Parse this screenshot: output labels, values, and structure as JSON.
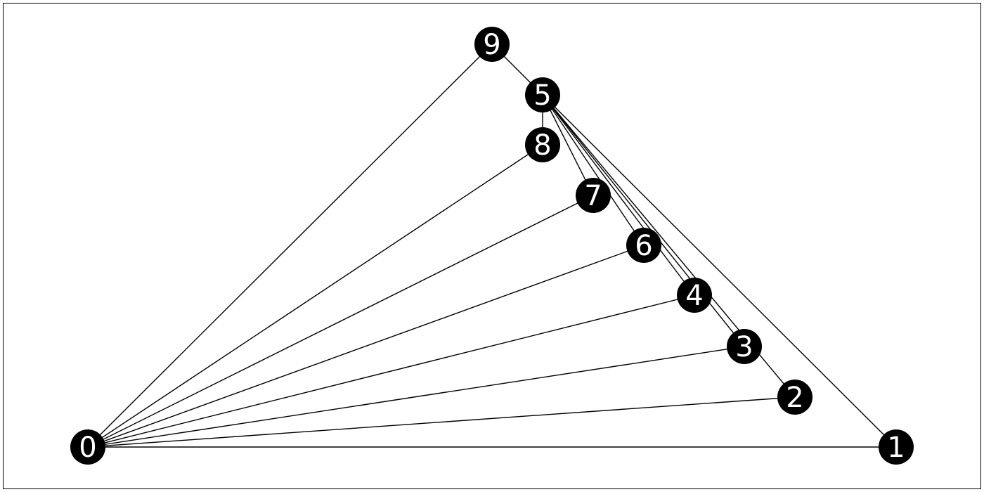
{
  "graph": {
    "nodes": [
      {
        "id": 0,
        "label": "0"
      },
      {
        "id": 1,
        "label": "1"
      },
      {
        "id": 2,
        "label": "2"
      },
      {
        "id": 3,
        "label": "3"
      },
      {
        "id": 4,
        "label": "4"
      },
      {
        "id": 5,
        "label": "5"
      },
      {
        "id": 6,
        "label": "6"
      },
      {
        "id": 7,
        "label": "7"
      },
      {
        "id": 8,
        "label": "8"
      },
      {
        "id": 9,
        "label": "9"
      }
    ],
    "edges": [
      [
        0,
        1
      ],
      [
        0,
        2
      ],
      [
        0,
        3
      ],
      [
        0,
        4
      ],
      [
        0,
        6
      ],
      [
        0,
        7
      ],
      [
        0,
        8
      ],
      [
        0,
        9
      ],
      [
        9,
        5
      ],
      [
        5,
        8
      ],
      [
        5,
        7
      ],
      [
        5,
        6
      ],
      [
        5,
        4
      ],
      [
        5,
        3
      ],
      [
        5,
        2
      ],
      [
        5,
        1
      ]
    ],
    "colors": {
      "node_fill": "#000000",
      "node_label": "#ffffff",
      "edge": "#000000",
      "background": "#ffffff"
    }
  }
}
